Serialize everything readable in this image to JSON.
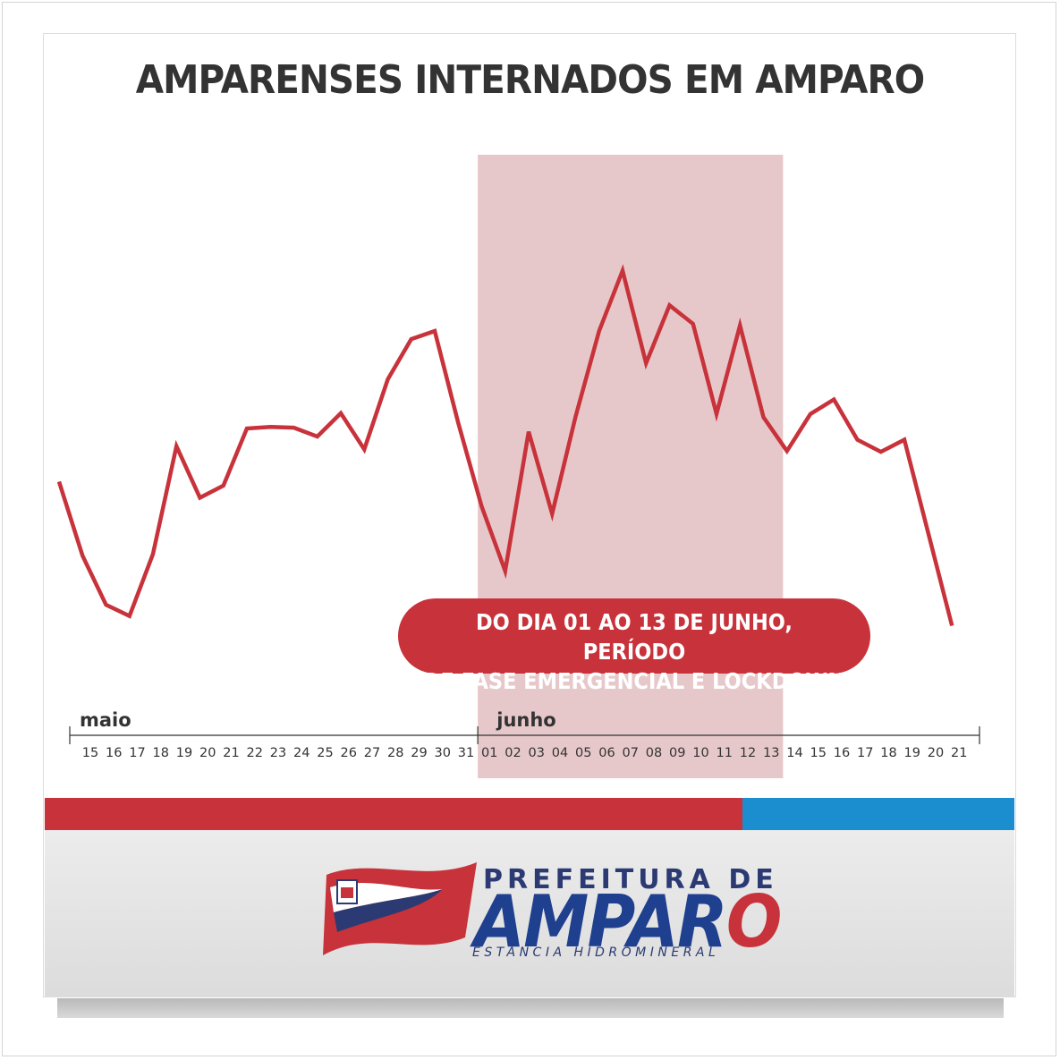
{
  "header": {
    "title": "AMPARENSES INTERNADOS EM AMPARO"
  },
  "annotation": {
    "line1": "DO DIA 01 AO 13 DE JUNHO, PERÍODO",
    "line2": "DE FASE EMERGENCIAL E LOCKDOWN"
  },
  "logo": {
    "top_text": "PREFEITURA DE",
    "main_a": "AMPAR",
    "main_b": "O",
    "bottom_text": "ESTÂNCIA HIDROMINERAL"
  },
  "colors": {
    "line": "#c8323a",
    "highlight": "#e7c8ca",
    "bar_red": "#c8323a",
    "bar_blue": "#1a8ecf"
  },
  "chart_data": {
    "type": "line",
    "title": "AMPARENSES INTERNADOS EM AMPARO",
    "xlabel": "",
    "ylabel": "",
    "grid": false,
    "legend": "none",
    "y_axis_visible": false,
    "month_labels": [
      {
        "label": "maio",
        "start_index": 0
      },
      {
        "label": "junho",
        "start_index": 17
      }
    ],
    "categories": [
      "15",
      "16",
      "17",
      "18",
      "19",
      "20",
      "21",
      "22",
      "23",
      "24",
      "25",
      "26",
      "27",
      "28",
      "29",
      "30",
      "31",
      "01",
      "02",
      "03",
      "04",
      "05",
      "06",
      "07",
      "08",
      "09",
      "10",
      "11",
      "12",
      "13",
      "14",
      "15",
      "16",
      "17",
      "18",
      "19",
      "20",
      "21"
    ],
    "extra_point_after_last": true,
    "series": [
      {
        "values": [
          32.4,
          23.2,
          17.1,
          15.7,
          23.4,
          36.8,
          30.4,
          31.9,
          39.0,
          39.2,
          39.1,
          38.0,
          40.9,
          36.4,
          45.1,
          50.1,
          51.1,
          39.7,
          29.3,
          21.3,
          38.6,
          28.4,
          40.5,
          51.1,
          58.6,
          47.1,
          54.3,
          52.0,
          40.8,
          51.8,
          40.4,
          36.2,
          40.8,
          42.6,
          37.6,
          36.1,
          37.6,
          14.5
        ]
      }
    ],
    "highlight_range": {
      "from": "01",
      "to": "13"
    },
    "ylim": [
      0,
      70
    ]
  }
}
